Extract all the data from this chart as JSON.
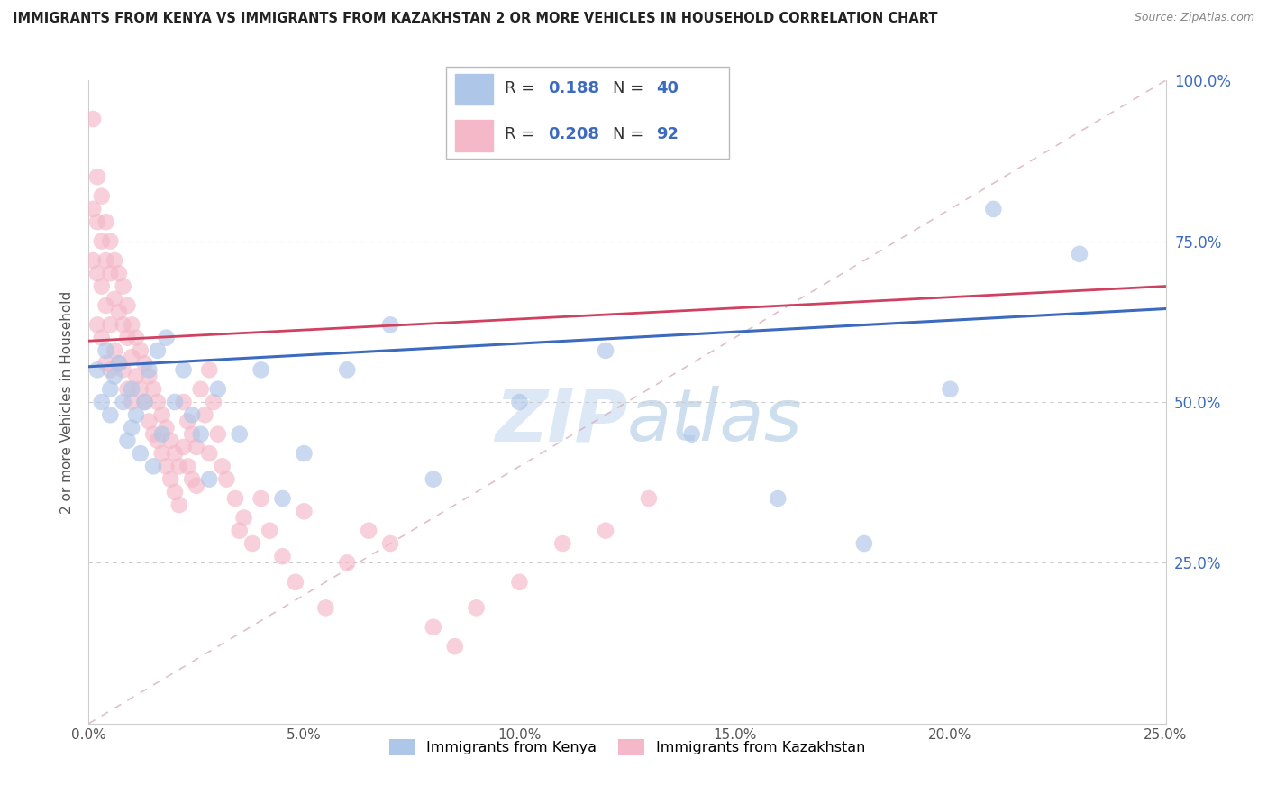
{
  "title": "IMMIGRANTS FROM KENYA VS IMMIGRANTS FROM KAZAKHSTAN 2 OR MORE VEHICLES IN HOUSEHOLD CORRELATION CHART",
  "source": "Source: ZipAtlas.com",
  "ylabel": "2 or more Vehicles in Household",
  "xlim": [
    0.0,
    0.25
  ],
  "ylim": [
    0.0,
    1.0
  ],
  "xticks": [
    0.0,
    0.05,
    0.1,
    0.15,
    0.2,
    0.25
  ],
  "yticks": [
    0.0,
    0.25,
    0.5,
    0.75,
    1.0
  ],
  "kenya_R": 0.188,
  "kenya_N": 40,
  "kazakh_R": 0.208,
  "kazakh_N": 92,
  "kenya_color": "#aec6e8",
  "kazakh_color": "#f4b8c8",
  "kenya_line_color": "#3b6abf",
  "kazakh_line_color": "#d04060",
  "watermark_color": "#dce8f5",
  "kenya_x": [
    0.002,
    0.003,
    0.004,
    0.005,
    0.005,
    0.006,
    0.007,
    0.008,
    0.009,
    0.01,
    0.01,
    0.011,
    0.012,
    0.013,
    0.014,
    0.015,
    0.016,
    0.017,
    0.018,
    0.02,
    0.022,
    0.024,
    0.026,
    0.028,
    0.03,
    0.035,
    0.04,
    0.045,
    0.05,
    0.06,
    0.07,
    0.08,
    0.1,
    0.12,
    0.14,
    0.16,
    0.18,
    0.2,
    0.21,
    0.23
  ],
  "kenya_y": [
    0.55,
    0.5,
    0.58,
    0.52,
    0.48,
    0.54,
    0.56,
    0.5,
    0.44,
    0.52,
    0.46,
    0.48,
    0.42,
    0.5,
    0.55,
    0.4,
    0.58,
    0.45,
    0.6,
    0.5,
    0.55,
    0.48,
    0.45,
    0.38,
    0.52,
    0.45,
    0.55,
    0.35,
    0.42,
    0.55,
    0.62,
    0.38,
    0.5,
    0.58,
    0.45,
    0.35,
    0.28,
    0.52,
    0.8,
    0.73
  ],
  "kazakh_x": [
    0.001,
    0.001,
    0.001,
    0.002,
    0.002,
    0.002,
    0.002,
    0.003,
    0.003,
    0.003,
    0.003,
    0.004,
    0.004,
    0.004,
    0.004,
    0.005,
    0.005,
    0.005,
    0.005,
    0.006,
    0.006,
    0.006,
    0.007,
    0.007,
    0.007,
    0.008,
    0.008,
    0.008,
    0.009,
    0.009,
    0.009,
    0.01,
    0.01,
    0.01,
    0.011,
    0.011,
    0.012,
    0.012,
    0.013,
    0.013,
    0.014,
    0.014,
    0.015,
    0.015,
    0.016,
    0.016,
    0.017,
    0.017,
    0.018,
    0.018,
    0.019,
    0.019,
    0.02,
    0.02,
    0.021,
    0.021,
    0.022,
    0.022,
    0.023,
    0.023,
    0.024,
    0.024,
    0.025,
    0.025,
    0.026,
    0.027,
    0.028,
    0.028,
    0.029,
    0.03,
    0.031,
    0.032,
    0.034,
    0.035,
    0.036,
    0.038,
    0.04,
    0.042,
    0.045,
    0.048,
    0.05,
    0.055,
    0.06,
    0.065,
    0.07,
    0.08,
    0.085,
    0.09,
    0.1,
    0.11,
    0.12,
    0.13
  ],
  "kazakh_y": [
    0.94,
    0.8,
    0.72,
    0.85,
    0.78,
    0.7,
    0.62,
    0.82,
    0.75,
    0.68,
    0.6,
    0.78,
    0.72,
    0.65,
    0.56,
    0.75,
    0.7,
    0.62,
    0.55,
    0.72,
    0.66,
    0.58,
    0.7,
    0.64,
    0.56,
    0.68,
    0.62,
    0.55,
    0.65,
    0.6,
    0.52,
    0.62,
    0.57,
    0.5,
    0.6,
    0.54,
    0.58,
    0.52,
    0.56,
    0.5,
    0.54,
    0.47,
    0.52,
    0.45,
    0.5,
    0.44,
    0.48,
    0.42,
    0.46,
    0.4,
    0.44,
    0.38,
    0.42,
    0.36,
    0.4,
    0.34,
    0.5,
    0.43,
    0.47,
    0.4,
    0.45,
    0.38,
    0.43,
    0.37,
    0.52,
    0.48,
    0.55,
    0.42,
    0.5,
    0.45,
    0.4,
    0.38,
    0.35,
    0.3,
    0.32,
    0.28,
    0.35,
    0.3,
    0.26,
    0.22,
    0.33,
    0.18,
    0.25,
    0.3,
    0.28,
    0.15,
    0.12,
    0.18,
    0.22,
    0.28,
    0.3,
    0.35
  ]
}
